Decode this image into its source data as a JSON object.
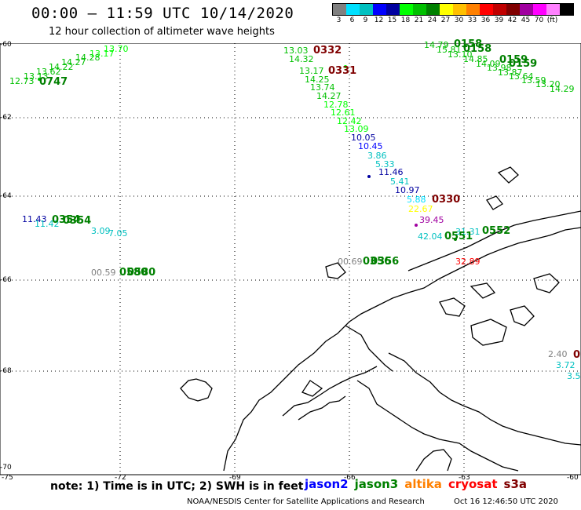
{
  "title": "00:00 – 11:59 UTC 10/14/2020",
  "subtitle": "12 hour collection of altimeter wave heights",
  "legend": {
    "colors": [
      "#808080",
      "#00e0ff",
      "#00c0c0",
      "#0000ff",
      "#0000a0",
      "#00ff00",
      "#00c000",
      "#008000",
      "#ffff00",
      "#ffc000",
      "#ff8000",
      "#ff0000",
      "#c00000",
      "#800000",
      "#a000a0",
      "#ff00ff",
      "#ff80ff",
      "#000000"
    ],
    "labels": [
      "3",
      "6",
      "9",
      "12",
      "15",
      "18",
      "21",
      "24",
      "27",
      "30",
      "33",
      "36",
      "39",
      "42",
      "45",
      "70",
      "(ft)"
    ]
  },
  "axes": {
    "lat_labels": [
      "-60",
      "-62",
      "-64",
      "-66",
      "-68",
      "-70"
    ],
    "lon_labels": [
      "-75",
      "-72",
      "-69",
      "-66",
      "-63",
      "-60"
    ]
  },
  "tracks": {
    "t0747": [
      "12.73",
      "13.13",
      "13.62",
      "14.22",
      "14.27",
      "14.28",
      "13.17",
      "13.70"
    ],
    "t0747_time": "0747",
    "t0332": [
      "13.03",
      "14.32",
      "13.17",
      "14.25",
      "13.74",
      "14.27",
      "12.78",
      "12.61",
      "12.42",
      "13.09",
      "10.05",
      "10.45",
      "3.86",
      "5.33",
      "11.46",
      "5.41",
      "10.97",
      "5.88",
      "22.67",
      "39.45"
    ],
    "t0332_time": "0332",
    "t0331_time": "0331",
    "t0330_time": "0330",
    "ne_times": [
      "0158",
      "0158",
      "0159",
      "0159"
    ],
    "ne_values": [
      "14.79",
      "15.81",
      "13.10",
      "14.85",
      "14.09",
      "13.98",
      "13.87",
      "13.64",
      "13.59",
      "13.20",
      "14.29"
    ],
    "west_times": [
      "0354",
      "0354"
    ],
    "west_values": [
      "11.43",
      "11.42",
      "3.09",
      "7.05"
    ],
    "sw_values": [
      "00.59"
    ],
    "sw_times": [
      "0580",
      "0580"
    ],
    "mid_values": [
      "00.69"
    ],
    "mid_times": [
      "0356",
      "0356"
    ],
    "east_values": [
      "42.04",
      "31.31",
      "32.89"
    ],
    "east_times": [
      "0552",
      "0551"
    ],
    "far_east_values": [
      "2.40",
      "3.72",
      "3.5"
    ],
    "far_east_time": "0"
  },
  "note": "note:  1) Time is in UTC;  2) SWH is in feet",
  "satellites": [
    {
      "name": "jason2",
      "color": "#0000ff"
    },
    {
      "name": "jason3",
      "color": "#008000"
    },
    {
      "name": "altika",
      "color": "#ff8000"
    },
    {
      "name": "cryosat",
      "color": "#ff0000"
    },
    {
      "name": "s3a",
      "color": "#800000"
    }
  ],
  "footer_left": "NOAA/NESDIS Center for Satellite Applications and Research",
  "footer_right": "Oct 16 12:46:50 UTC 2020"
}
